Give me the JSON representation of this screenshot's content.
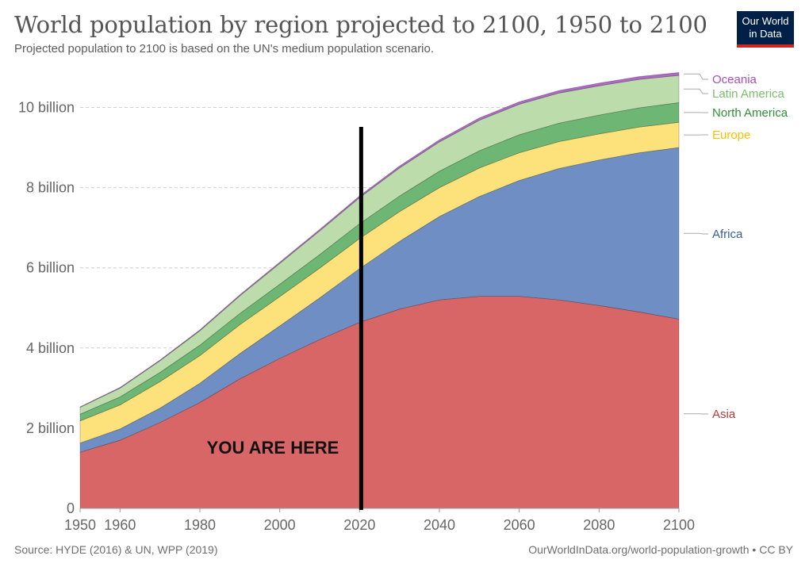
{
  "header": {
    "title": "World population by region projected to 2100, 1950 to 2100",
    "subtitle": "Projected population to 2100 is based on the UN's medium population scenario.",
    "logo_line1": "Our World",
    "logo_line2": "in Data"
  },
  "footer": {
    "source": "Source: HYDE (2016) & UN, WPP (2019)",
    "credit": "OurWorldInData.org/world-population-growth • CC BY"
  },
  "chart_data": {
    "type": "area",
    "stacked": true,
    "x": [
      1950,
      1960,
      1970,
      1980,
      1990,
      2000,
      2010,
      2020,
      2030,
      2040,
      2050,
      2060,
      2070,
      2080,
      2090,
      2100
    ],
    "xticks": [
      1950,
      1960,
      1980,
      2000,
      2020,
      2040,
      2060,
      2080,
      2100
    ],
    "yticks": [
      {
        "value": 0,
        "label": "0"
      },
      {
        "value": 2,
        "label": "2 billion"
      },
      {
        "value": 4,
        "label": "4 billion"
      },
      {
        "value": 6,
        "label": "6 billion"
      },
      {
        "value": 8,
        "label": "8 billion"
      },
      {
        "value": 10,
        "label": "10 billion"
      }
    ],
    "xlim": [
      1950,
      2100
    ],
    "ylim": [
      0,
      11
    ],
    "grid": "horizontal-dashed",
    "legend_placement": "right",
    "series": [
      {
        "name": "Asia",
        "color": "#d96666",
        "values": [
          1.4,
          1.7,
          2.14,
          2.64,
          3.23,
          3.74,
          4.21,
          4.64,
          4.97,
          5.2,
          5.29,
          5.29,
          5.2,
          5.06,
          4.9,
          4.72
        ]
      },
      {
        "name": "Africa",
        "color": "#6f8fc4",
        "values": [
          0.23,
          0.28,
          0.36,
          0.48,
          0.63,
          0.81,
          1.04,
          1.34,
          1.69,
          2.08,
          2.49,
          2.89,
          3.28,
          3.63,
          3.97,
          4.28
        ]
      },
      {
        "name": "Europe",
        "color": "#fde17a",
        "values": [
          0.55,
          0.6,
          0.66,
          0.69,
          0.72,
          0.73,
          0.74,
          0.75,
          0.74,
          0.72,
          0.71,
          0.69,
          0.67,
          0.65,
          0.64,
          0.63
        ]
      },
      {
        "name": "North America",
        "color": "#6db673",
        "values": [
          0.17,
          0.2,
          0.23,
          0.26,
          0.28,
          0.31,
          0.34,
          0.37,
          0.39,
          0.41,
          0.43,
          0.45,
          0.46,
          0.47,
          0.48,
          0.49
        ]
      },
      {
        "name": "Latin America",
        "color": "#bcdcac",
        "values": [
          0.17,
          0.22,
          0.29,
          0.36,
          0.44,
          0.52,
          0.59,
          0.65,
          0.7,
          0.73,
          0.76,
          0.76,
          0.75,
          0.73,
          0.71,
          0.68
        ]
      },
      {
        "name": "Oceania",
        "color": "#b068c7",
        "values": [
          0.013,
          0.016,
          0.02,
          0.023,
          0.027,
          0.031,
          0.037,
          0.043,
          0.048,
          0.053,
          0.057,
          0.061,
          0.064,
          0.067,
          0.07,
          0.072
        ]
      }
    ],
    "legend_colors": {
      "Asia": "#b13b3b",
      "Africa": "#365f98",
      "Europe": "#f2c200",
      "North America": "#2f8f3a",
      "Latin America": "#7cbd6b",
      "Oceania": "#a64fb9"
    },
    "annotation": {
      "x": 2021,
      "label": "YOU ARE HERE"
    }
  }
}
